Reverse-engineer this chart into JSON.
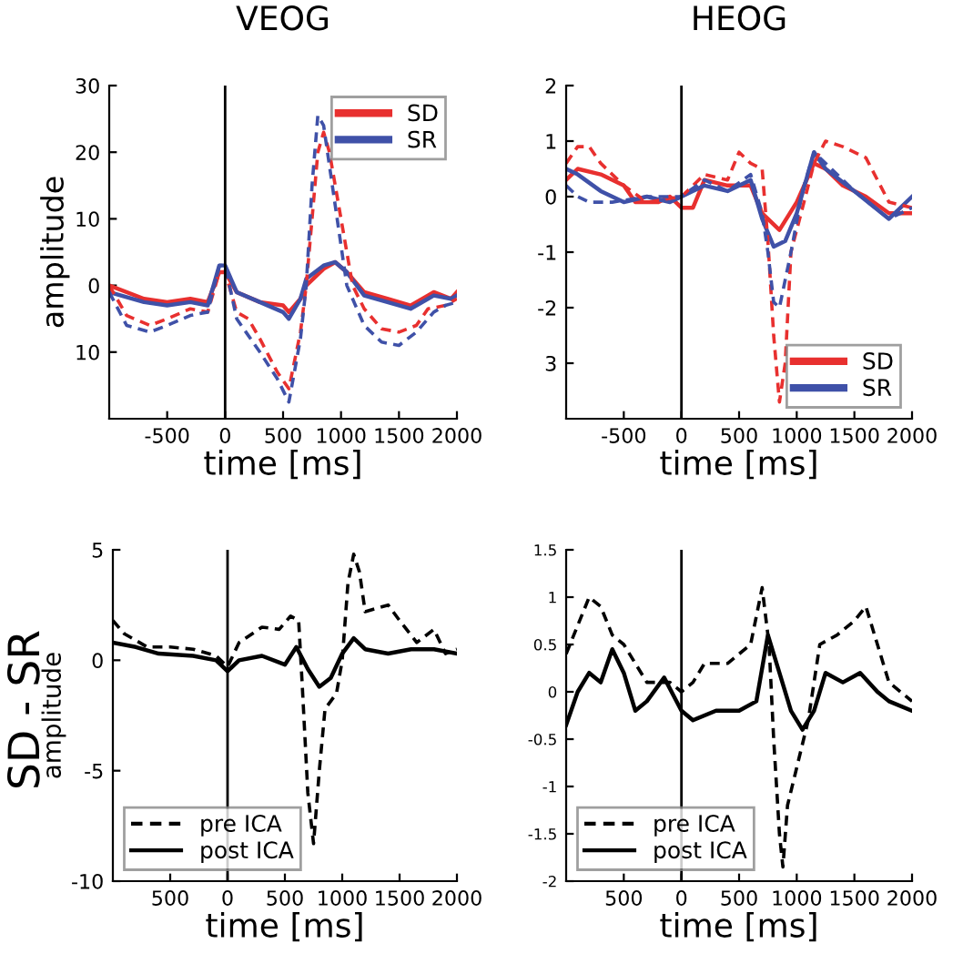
{
  "chart_data": [
    {
      "type": "line",
      "title": "VEOG",
      "xlabel": "time [ms]",
      "ylabel": "amplitude",
      "legend": "top right",
      "grid": false,
      "xlim": [
        -1000,
        2000
      ],
      "xticks": [
        -500,
        0,
        500,
        1000,
        1500,
        2000
      ],
      "ylim": [
        -20,
        30
      ],
      "yticks": [
        {
          "value": -10,
          "label": "10"
        },
        0,
        10,
        20,
        30
      ],
      "ref_lines": [
        {
          "axis": "x",
          "value": 0,
          "color": "#000000",
          "line_style": "solid"
        }
      ],
      "series": [
        {
          "name": "SD",
          "color": "#e8302f",
          "line_style": "solid",
          "x": [
            -1000,
            -700,
            -500,
            -300,
            -150,
            -50,
            0,
            100,
            300,
            500,
            550,
            650,
            700,
            850,
            950,
            1050,
            1200,
            1400,
            1600,
            1750,
            1800,
            1950,
            2000
          ],
          "values": [
            0,
            -2,
            -2.5,
            -2,
            -2.5,
            2,
            2,
            -1,
            -2.5,
            -3,
            -4,
            -2,
            0,
            2.5,
            3.5,
            2,
            -1,
            -2,
            -3,
            -1.5,
            -1,
            -2,
            -1
          ]
        },
        {
          "name": "SR",
          "color": "#3f51a8",
          "line_style": "solid",
          "x": [
            -1000,
            -700,
            -500,
            -300,
            -150,
            -50,
            0,
            100,
            300,
            500,
            550,
            650,
            700,
            850,
            950,
            1050,
            1200,
            1400,
            1600,
            1750,
            1800,
            1950,
            2000
          ],
          "values": [
            -1,
            -2.5,
            -3,
            -2.5,
            -3,
            3,
            3,
            -1,
            -2.5,
            -4,
            -5,
            -2,
            1,
            3,
            3.5,
            2,
            -1.5,
            -2.5,
            -3.5,
            -2,
            -1.5,
            -2,
            -1.5
          ]
        },
        {
          "color": "#e8302f",
          "line_style": "dashed",
          "x": [
            -1000,
            -850,
            -650,
            -500,
            -300,
            -150,
            -50,
            0,
            100,
            200,
            300,
            450,
            550,
            650,
            700,
            750,
            800,
            850,
            900,
            1000,
            1100,
            1200,
            1350,
            1500,
            1650,
            1750,
            1900,
            2000
          ],
          "values": [
            0,
            -4.5,
            -6,
            -5,
            -3.5,
            -4,
            2,
            2,
            -4,
            -5,
            -8,
            -13,
            -15.5,
            -7,
            0,
            10,
            20,
            23,
            20,
            10,
            0,
            -3.5,
            -6.5,
            -7,
            -6,
            -3.5,
            -3,
            -2
          ]
        },
        {
          "color": "#3f51a8",
          "line_style": "dashed",
          "x": [
            -1000,
            -850,
            -650,
            -500,
            -300,
            -150,
            -50,
            0,
            100,
            300,
            450,
            550,
            650,
            700,
            750,
            800,
            850,
            950,
            1050,
            1200,
            1350,
            1500,
            1650,
            1800,
            1900,
            2000
          ],
          "values": [
            -1,
            -6,
            -7,
            -6,
            -4.5,
            -4,
            3,
            3,
            -5,
            -10,
            -14,
            -17.5,
            -8,
            0,
            15,
            25.5,
            24,
            12,
            0,
            -6,
            -8.5,
            -9,
            -7,
            -4,
            -3,
            -2.5
          ]
        }
      ]
    },
    {
      "type": "line",
      "title": "HEOG",
      "xlabel": "time [ms]",
      "legend": "bottom right",
      "grid": false,
      "xlim": [
        -1000,
        2000
      ],
      "xticks": [
        -500,
        0,
        500,
        1000,
        1500,
        2000
      ],
      "ylim": [
        -4,
        2
      ],
      "yticks": [
        {
          "value": -3,
          "label": "3"
        },
        -2,
        -1,
        0,
        1,
        2
      ],
      "ref_lines": [
        {
          "axis": "x",
          "value": 0,
          "color": "#000000",
          "line_style": "solid"
        }
      ],
      "series": [
        {
          "name": "SD",
          "color": "#e8302f",
          "line_style": "solid",
          "x": [
            -1000,
            -900,
            -700,
            -500,
            -400,
            -200,
            -100,
            0,
            100,
            200,
            400,
            600,
            700,
            850,
            1000,
            1150,
            1250,
            1400,
            1600,
            1800,
            2000
          ],
          "values": [
            0.3,
            0.5,
            0.4,
            0.2,
            -0.1,
            -0.1,
            0,
            -0.2,
            -0.2,
            0.3,
            0.2,
            0.2,
            -0.3,
            -0.6,
            -0.1,
            0.6,
            0.5,
            0.2,
            0,
            -0.3,
            -0.3
          ]
        },
        {
          "name": "SR",
          "color": "#3f51a8",
          "line_style": "solid",
          "x": [
            -1000,
            -900,
            -700,
            -500,
            -300,
            -100,
            0,
            200,
            400,
            600,
            700,
            800,
            900,
            1000,
            1150,
            1250,
            1500,
            1800,
            2000
          ],
          "values": [
            0.5,
            0.4,
            0.1,
            -0.1,
            0,
            -0.1,
            0,
            0.2,
            0.1,
            0.3,
            -0.4,
            -0.9,
            -0.8,
            -0.3,
            0.8,
            0.5,
            0.1,
            -0.4,
            0
          ]
        },
        {
          "color": "#e8302f",
          "line_style": "dashed",
          "x": [
            -1000,
            -900,
            -800,
            -700,
            -500,
            -300,
            0,
            200,
            400,
            500,
            600,
            700,
            750,
            800,
            850,
            900,
            950,
            1050,
            1150,
            1250,
            1400,
            1600,
            1700,
            1800,
            2000
          ],
          "values": [
            0.6,
            0.9,
            0.9,
            0.6,
            0.2,
            -0.1,
            0,
            0.4,
            0.3,
            0.8,
            0.6,
            0.5,
            -0.8,
            -2.5,
            -3.7,
            -3,
            -1,
            -0.2,
            0.6,
            1,
            0.9,
            0.7,
            0.3,
            -0.1,
            -0.2
          ]
        },
        {
          "color": "#3f51a8",
          "line_style": "dashed",
          "x": [
            -1000,
            -900,
            -800,
            -600,
            -300,
            0,
            200,
            400,
            600,
            700,
            750,
            800,
            850,
            950,
            1050,
            1150,
            1300,
            1500,
            1800,
            2000
          ],
          "values": [
            0.2,
            0,
            -0.1,
            -0.1,
            0,
            0,
            0.3,
            0.1,
            0.4,
            -0.3,
            -1,
            -1.9,
            -2,
            -1,
            0.1,
            0.8,
            0.5,
            0.1,
            -0.4,
            -0.2
          ]
        }
      ]
    },
    {
      "type": "line",
      "xlabel": "time [ms]",
      "ylabel": "amplitude",
      "legend": "bottom left",
      "grid": false,
      "annotations": [
        "SD - SR"
      ],
      "xlim": [
        -1000,
        2000
      ],
      "xticks": [
        {
          "value": -500,
          "label": "500"
        },
        0,
        500,
        1000,
        1500,
        2000
      ],
      "ylim": [
        -10,
        5
      ],
      "yticks": [
        -10,
        -5,
        0,
        5
      ],
      "ref_lines": [
        {
          "axis": "x",
          "value": 0,
          "color": "#000000",
          "line_style": "solid"
        }
      ],
      "series": [
        {
          "name": "pre ICA",
          "color": "#000000",
          "line_style": "dashed",
          "x": [
            -1000,
            -900,
            -700,
            -500,
            -300,
            -100,
            0,
            100,
            300,
            450,
            550,
            620,
            650,
            700,
            750,
            800,
            850,
            950,
            1000,
            1050,
            1100,
            1150,
            1200,
            1400,
            1500,
            1650,
            1800,
            1900,
            2000
          ],
          "values": [
            1.8,
            1.2,
            0.6,
            0.6,
            0.5,
            0.2,
            -0.3,
            0.8,
            1.5,
            1.4,
            2,
            1.8,
            -1,
            -6,
            -8.3,
            -5,
            -2.2,
            -1.5,
            0,
            3.5,
            4.8,
            4,
            2.2,
            2.5,
            1.8,
            0.8,
            1.4,
            0.3,
            0.5
          ]
        },
        {
          "name": "post ICA",
          "color": "#000000",
          "line_style": "solid",
          "x": [
            -1000,
            -800,
            -600,
            -300,
            -100,
            0,
            100,
            300,
            500,
            600,
            700,
            800,
            900,
            1000,
            1100,
            1200,
            1400,
            1600,
            1800,
            2000
          ],
          "values": [
            0.8,
            0.6,
            0.3,
            0.2,
            0,
            -0.5,
            0,
            0.2,
            -0.2,
            0.6,
            -0.4,
            -1.2,
            -0.8,
            0.3,
            1,
            0.5,
            0.3,
            0.5,
            0.5,
            0.3
          ]
        }
      ]
    },
    {
      "type": "line",
      "xlabel": "time [ms]",
      "legend": "bottom left",
      "grid": false,
      "xlim": [
        -1000,
        2000
      ],
      "xticks": [
        {
          "value": -500,
          "label": "500"
        },
        0,
        500,
        1000,
        1500,
        2000
      ],
      "ylim": [
        -2,
        1.5
      ],
      "yticks": [
        -2,
        -1.5,
        -1,
        -0.5,
        0,
        0.5,
        1,
        1.5
      ],
      "ref_lines": [
        {
          "axis": "x",
          "value": 0,
          "color": "#000000",
          "line_style": "solid"
        }
      ],
      "series": [
        {
          "name": "pre ICA",
          "color": "#000000",
          "line_style": "dashed",
          "x": [
            -1000,
            -900,
            -800,
            -700,
            -600,
            -500,
            -300,
            -100,
            0,
            100,
            200,
            400,
            600,
            700,
            760,
            800,
            850,
            880,
            920,
            1000,
            1100,
            1200,
            1350,
            1500,
            1600,
            1700,
            1800,
            1900,
            2000
          ],
          "values": [
            0.4,
            0.7,
            1,
            0.9,
            0.6,
            0.5,
            0.1,
            0.1,
            0,
            0.1,
            0.3,
            0.3,
            0.5,
            1.1,
            0.5,
            -0.5,
            -1.5,
            -1.85,
            -1.2,
            -0.8,
            -0.3,
            0.5,
            0.6,
            0.75,
            0.9,
            0.5,
            0.1,
            0,
            -0.1
          ]
        },
        {
          "name": "post ICA",
          "color": "#000000",
          "line_style": "solid",
          "x": [
            -1000,
            -900,
            -800,
            -700,
            -600,
            -500,
            -400,
            -300,
            -150,
            0,
            100,
            300,
            500,
            650,
            750,
            850,
            950,
            1050,
            1150,
            1250,
            1400,
            1550,
            1700,
            1800,
            2000
          ],
          "values": [
            -0.35,
            0,
            0.2,
            0.1,
            0.45,
            0.2,
            -0.2,
            -0.1,
            0.15,
            -0.2,
            -0.3,
            -0.2,
            -0.2,
            -0.1,
            0.6,
            0.2,
            -0.2,
            -0.4,
            -0.2,
            0.2,
            0.1,
            0.2,
            0,
            -0.1,
            -0.2
          ]
        }
      ]
    }
  ]
}
